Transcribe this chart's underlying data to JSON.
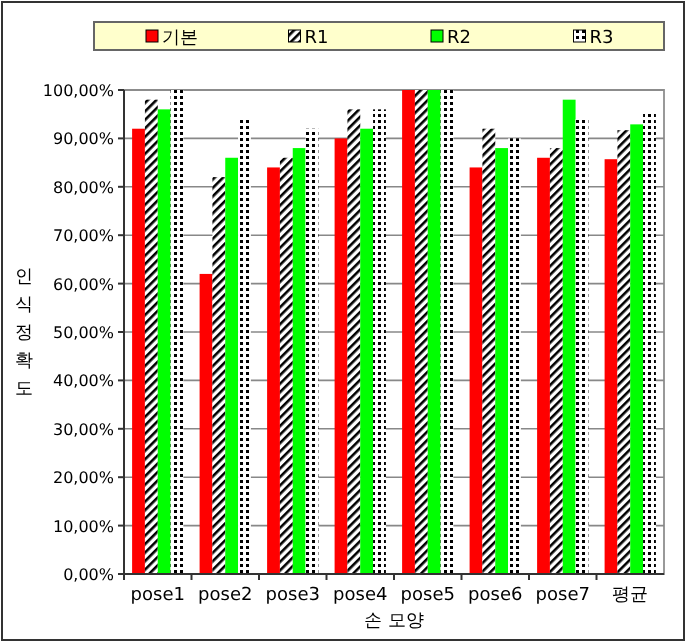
{
  "chart_data": {
    "type": "bar",
    "categories": [
      "pose1",
      "pose2",
      "pose3",
      "pose4",
      "pose5",
      "pose6",
      "pose7",
      "평균"
    ],
    "series": [
      {
        "name": "기본",
        "color": "#ff0000",
        "values": [
          92,
          62,
          84,
          90,
          100,
          84,
          86,
          85.7
        ]
      },
      {
        "name": "R1",
        "color": "#000000",
        "values": [
          98,
          82,
          86,
          96,
          100,
          92,
          88,
          91.7
        ]
      },
      {
        "name": "R2",
        "color": "#00ff00",
        "values": [
          96,
          86,
          88,
          92,
          100,
          88,
          98,
          92.9
        ]
      },
      {
        "name": "R3",
        "color": "#000000",
        "values": [
          100,
          94,
          92,
          96,
          100,
          90,
          94,
          95.1
        ]
      }
    ],
    "xlabel": "손 모양",
    "ylabel": "인식정확도",
    "ylim": [
      0,
      100
    ],
    "yticks": [
      {
        "value": 0,
        "label": "0,00%"
      },
      {
        "value": 10,
        "label": "10,00%"
      },
      {
        "value": 20,
        "label": "20,00%"
      },
      {
        "value": 30,
        "label": "30,00%"
      },
      {
        "value": 40,
        "label": "40,00%"
      },
      {
        "value": 50,
        "label": "50,00%"
      },
      {
        "value": 60,
        "label": "60,00%"
      },
      {
        "value": 70,
        "label": "70,00%"
      },
      {
        "value": 80,
        "label": "80,00%"
      },
      {
        "value": 90,
        "label": "90,00%"
      },
      {
        "value": 100,
        "label": "100,00%"
      }
    ],
    "grid": "y",
    "legend": "top"
  }
}
